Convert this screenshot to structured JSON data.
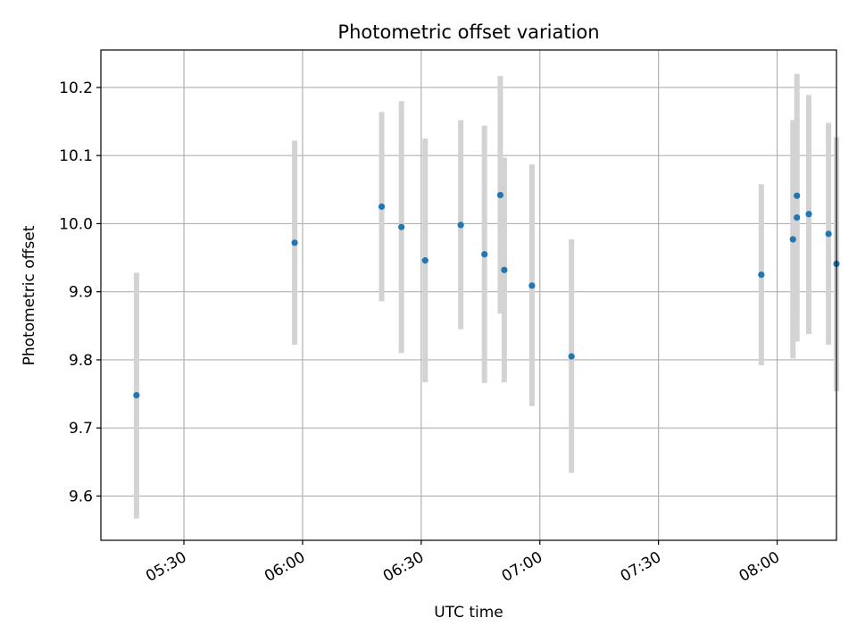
{
  "chart_data": {
    "type": "scatter",
    "title": "Photometric offset variation",
    "xlabel": "UTC time",
    "ylabel": "Photometric offset",
    "x_axis_type": "time",
    "xlim": [
      "05:09",
      "08:15"
    ],
    "ylim": [
      9.535,
      10.255
    ],
    "x_ticks": [
      "05:30",
      "06:00",
      "06:30",
      "07:00",
      "07:30",
      "08:00"
    ],
    "y_ticks": [
      9.6,
      9.7,
      9.8,
      9.9,
      10.0,
      10.1,
      10.2
    ],
    "y_tick_labels": [
      "9.6",
      "9.7",
      "9.8",
      "9.9",
      "10.0",
      "10.1",
      "10.2"
    ],
    "grid": true,
    "legend": "none",
    "colors": {
      "points": "#1f77b4",
      "error_bars": "#d3d3d3",
      "grid": "#b0b0b0"
    },
    "series": [
      {
        "points": [
          {
            "x": "05:18",
            "y": 9.748,
            "ylow": 9.567,
            "yhigh": 9.928
          },
          {
            "x": "05:58",
            "y": 9.972,
            "ylow": 9.822,
            "yhigh": 10.122
          },
          {
            "x": "06:20",
            "y": 10.025,
            "ylow": 9.886,
            "yhigh": 10.164
          },
          {
            "x": "06:25",
            "y": 9.995,
            "ylow": 9.81,
            "yhigh": 10.18
          },
          {
            "x": "06:31",
            "y": 9.946,
            "ylow": 9.767,
            "yhigh": 10.125
          },
          {
            "x": "06:40",
            "y": 9.998,
            "ylow": 9.845,
            "yhigh": 10.152
          },
          {
            "x": "06:46",
            "y": 9.955,
            "ylow": 9.766,
            "yhigh": 10.144
          },
          {
            "x": "06:50",
            "y": 10.042,
            "ylow": 9.868,
            "yhigh": 10.217
          },
          {
            "x": "06:51",
            "y": 9.932,
            "ylow": 9.767,
            "yhigh": 10.097
          },
          {
            "x": "06:58",
            "y": 9.909,
            "ylow": 9.732,
            "yhigh": 10.087
          },
          {
            "x": "07:08",
            "y": 9.805,
            "ylow": 9.634,
            "yhigh": 9.977
          },
          {
            "x": "07:56",
            "y": 9.925,
            "ylow": 9.792,
            "yhigh": 10.058
          },
          {
            "x": "08:04",
            "y": 9.977,
            "ylow": 9.802,
            "yhigh": 10.152
          },
          {
            "x": "08:05",
            "y": 10.009,
            "ylow": 9.864,
            "yhigh": 10.155
          },
          {
            "x": "08:05",
            "y": 10.041,
            "ylow": 9.827,
            "yhigh": 10.22
          },
          {
            "x": "08:08",
            "y": 10.014,
            "ylow": 9.838,
            "yhigh": 10.189
          },
          {
            "x": "08:13",
            "y": 9.985,
            "ylow": 9.822,
            "yhigh": 10.148
          },
          {
            "x": "08:15",
            "y": 9.941,
            "ylow": 9.754,
            "yhigh": 10.127
          }
        ]
      }
    ]
  }
}
